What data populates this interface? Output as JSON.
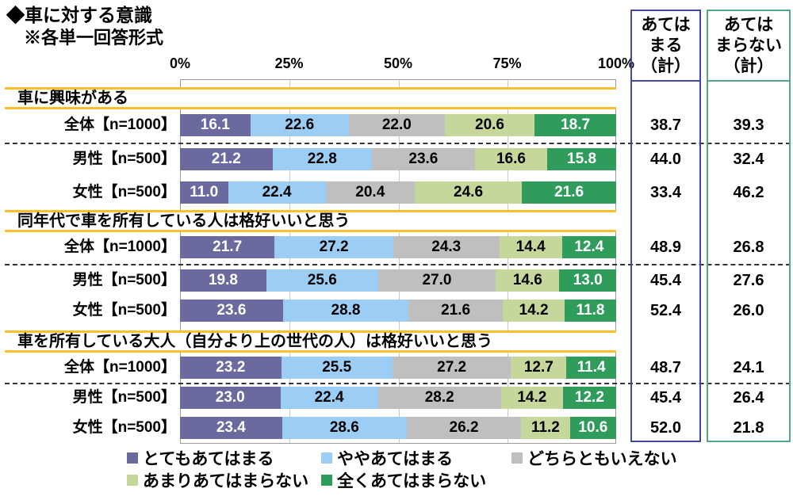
{
  "header": {
    "title": "◆車に対する意識",
    "subtitle": "※各単一回答形式"
  },
  "summary": {
    "agree_header": "あては\nまる\n（計）",
    "disagree_header": "あては\nまらない\n（計）",
    "agree_border_color": "#4547A6",
    "disagree_border_color": "#55A884"
  },
  "chart_data": {
    "type": "bar",
    "stacked": true,
    "orientation": "horizontal",
    "xlim": [
      0,
      100
    ],
    "x_ticks": [
      "0%",
      "25%",
      "50%",
      "75%",
      "100%"
    ],
    "grid": true,
    "legend_position": "bottom",
    "series_names": [
      "とてもあてはまる",
      "ややあてはまる",
      "どちらともいえない",
      "あまりあてはまらない",
      "全くあてはまらない"
    ],
    "series_colors": [
      "#6A6A9E",
      "#9CCEF5",
      "#BFBFBF",
      "#C5D79B",
      "#2F9C5C"
    ],
    "label_text_colors": [
      "#FFFFFF",
      "#000000",
      "#000000",
      "#000000",
      "#FFFFFF"
    ],
    "accent_line_color": "#FFBE2D",
    "sections": [
      {
        "question": "車に興味がある",
        "rows": [
          {
            "label": "全体【n=1000】",
            "values": [
              "16.1",
              "22.6",
              "22.0",
              "20.6",
              "18.7"
            ],
            "agree_total": "38.7",
            "disagree_total": "39.3"
          },
          {
            "label": "男性【n=500】",
            "values": [
              "21.2",
              "22.8",
              "23.6",
              "16.6",
              "15.8"
            ],
            "agree_total": "44.0",
            "disagree_total": "32.4"
          },
          {
            "label": "女性【n=500】",
            "values": [
              "11.0",
              "22.4",
              "20.4",
              "24.6",
              "21.6"
            ],
            "agree_total": "33.4",
            "disagree_total": "46.2"
          }
        ]
      },
      {
        "question": "同年代で車を所有している人は格好いいと思う",
        "rows": [
          {
            "label": "全体【n=1000】",
            "values": [
              "21.7",
              "27.2",
              "24.3",
              "14.4",
              "12.4"
            ],
            "agree_total": "48.9",
            "disagree_total": "26.8"
          },
          {
            "label": "男性【n=500】",
            "values": [
              "19.8",
              "25.6",
              "27.0",
              "14.6",
              "13.0"
            ],
            "agree_total": "45.4",
            "disagree_total": "27.6"
          },
          {
            "label": "女性【n=500】",
            "values": [
              "23.6",
              "28.8",
              "21.6",
              "14.2",
              "11.8"
            ],
            "agree_total": "52.4",
            "disagree_total": "26.0"
          }
        ]
      },
      {
        "question": "車を所有している大人（自分より上の世代の人）は格好いいと思う",
        "rows": [
          {
            "label": "全体【n=1000】",
            "values": [
              "23.2",
              "25.5",
              "27.2",
              "12.7",
              "11.4"
            ],
            "agree_total": "48.7",
            "disagree_total": "24.1"
          },
          {
            "label": "男性【n=500】",
            "values": [
              "23.0",
              "22.4",
              "28.2",
              "14.2",
              "12.2"
            ],
            "agree_total": "45.4",
            "disagree_total": "26.4"
          },
          {
            "label": "女性【n=500】",
            "values": [
              "23.4",
              "28.6",
              "26.2",
              "11.2",
              "10.6"
            ],
            "agree_total": "52.0",
            "disagree_total": "21.8"
          }
        ]
      }
    ]
  }
}
